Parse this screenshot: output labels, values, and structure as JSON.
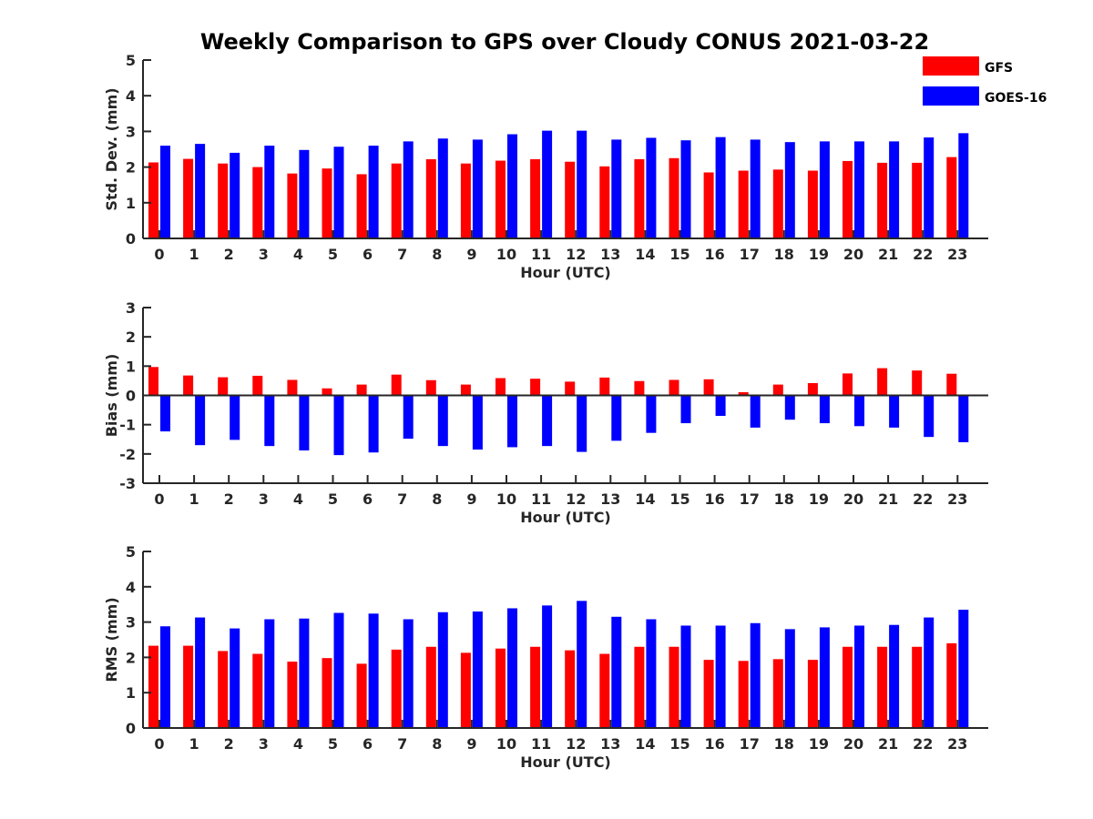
{
  "title": "Weekly Comparison to GPS over Cloudy CONUS 2021-03-22",
  "legend": [
    {
      "name": "GFS",
      "color": "#ff0000"
    },
    {
      "name": "GOES-16",
      "color": "#0000ff"
    }
  ],
  "chart_data": [
    {
      "type": "bar",
      "xlabel": "Hour (UTC)",
      "ylabel": "Std. Dev. (mm)",
      "ylim": [
        0,
        5
      ],
      "yticks": [
        0,
        1,
        2,
        3,
        4,
        5
      ],
      "categories": [
        "0",
        "1",
        "2",
        "3",
        "4",
        "5",
        "6",
        "7",
        "8",
        "9",
        "10",
        "11",
        "12",
        "13",
        "14",
        "15",
        "16",
        "17",
        "18",
        "19",
        "20",
        "21",
        "22",
        "23"
      ],
      "series": [
        {
          "name": "GFS",
          "color": "#ff0000",
          "values": [
            2.13,
            2.23,
            2.1,
            2.0,
            1.82,
            1.96,
            1.8,
            2.1,
            2.22,
            2.1,
            2.18,
            2.22,
            2.15,
            2.02,
            2.22,
            2.25,
            1.85,
            1.9,
            1.93,
            1.9,
            2.17,
            2.12,
            2.12,
            2.28
          ]
        },
        {
          "name": "GOES-16",
          "color": "#0000ff",
          "values": [
            2.6,
            2.65,
            2.4,
            2.6,
            2.48,
            2.57,
            2.6,
            2.72,
            2.8,
            2.77,
            2.92,
            3.02,
            3.02,
            2.77,
            2.82,
            2.75,
            2.84,
            2.77,
            2.7,
            2.72,
            2.72,
            2.72,
            2.83,
            2.95
          ]
        }
      ]
    },
    {
      "type": "bar",
      "xlabel": "Hour (UTC)",
      "ylabel": "Bias (mm)",
      "ylim": [
        -3,
        3
      ],
      "yticks": [
        -3,
        -2,
        -1,
        0,
        1,
        2,
        3
      ],
      "categories": [
        "0",
        "1",
        "2",
        "3",
        "4",
        "5",
        "6",
        "7",
        "8",
        "9",
        "10",
        "11",
        "12",
        "13",
        "14",
        "15",
        "16",
        "17",
        "18",
        "19",
        "20",
        "21",
        "22",
        "23"
      ],
      "series": [
        {
          "name": "GFS",
          "color": "#ff0000",
          "values": [
            0.97,
            0.68,
            0.62,
            0.67,
            0.53,
            0.24,
            0.37,
            0.71,
            0.52,
            0.37,
            0.59,
            0.57,
            0.47,
            0.61,
            0.49,
            0.53,
            0.55,
            0.11,
            0.37,
            0.42,
            0.75,
            0.93,
            0.85,
            0.74
          ]
        },
        {
          "name": "GOES-16",
          "color": "#0000ff",
          "values": [
            -1.23,
            -1.7,
            -1.52,
            -1.73,
            -1.88,
            -2.04,
            -1.95,
            -1.48,
            -1.73,
            -1.85,
            -1.77,
            -1.73,
            -1.93,
            -1.55,
            -1.28,
            -0.95,
            -0.7,
            -1.1,
            -0.83,
            -0.95,
            -1.05,
            -1.1,
            -1.42,
            -1.6
          ]
        }
      ]
    },
    {
      "type": "bar",
      "xlabel": "Hour (UTC)",
      "ylabel": "RMS (mm)",
      "ylim": [
        0,
        5
      ],
      "yticks": [
        0,
        1,
        2,
        3,
        4,
        5
      ],
      "categories": [
        "0",
        "1",
        "2",
        "3",
        "4",
        "5",
        "6",
        "7",
        "8",
        "9",
        "10",
        "11",
        "12",
        "13",
        "14",
        "15",
        "16",
        "17",
        "18",
        "19",
        "20",
        "21",
        "22",
        "23"
      ],
      "series": [
        {
          "name": "GFS",
          "color": "#ff0000",
          "values": [
            2.33,
            2.33,
            2.18,
            2.1,
            1.88,
            1.98,
            1.82,
            2.22,
            2.3,
            2.13,
            2.25,
            2.3,
            2.2,
            2.1,
            2.3,
            2.3,
            1.93,
            1.9,
            1.95,
            1.93,
            2.3,
            2.3,
            2.3,
            2.4
          ]
        },
        {
          "name": "GOES-16",
          "color": "#0000ff",
          "values": [
            2.88,
            3.13,
            2.82,
            3.08,
            3.1,
            3.26,
            3.24,
            3.08,
            3.28,
            3.3,
            3.39,
            3.47,
            3.6,
            3.15,
            3.08,
            2.9,
            2.9,
            2.97,
            2.8,
            2.85,
            2.9,
            2.92,
            3.13,
            3.35
          ]
        }
      ]
    }
  ]
}
